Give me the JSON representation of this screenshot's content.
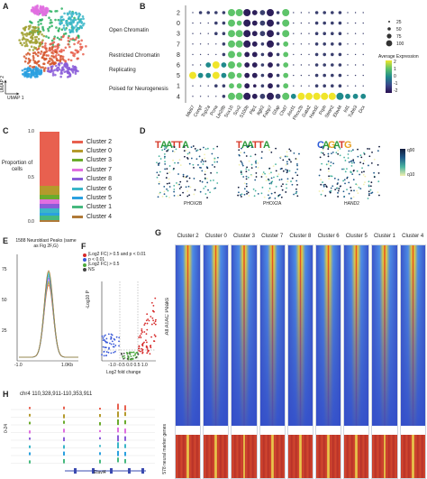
{
  "figure": {
    "panels": {
      "a": "A",
      "b": "B",
      "c": "C",
      "d": "D",
      "e": "E",
      "f": "F",
      "g": "G",
      "h": "H"
    }
  },
  "panel_a": {
    "axis_y": "UMAP 2",
    "axis_x": "UMAP 1"
  },
  "panel_b": {
    "cluster_rows": [
      "2",
      "0",
      "3",
      "7",
      "8",
      "6",
      "5",
      "1",
      "4"
    ],
    "groups": [
      "Open Chromatin",
      "Restricted Chromatin",
      "Replicating",
      "Poised for Neurogenesis"
    ],
    "genes": [
      "Mki67",
      "Cenpf",
      "Top2a",
      "Pcna",
      "Lin28b",
      "Sox10",
      "Sox2",
      "S100b",
      "Plp1",
      "Itgb2",
      "Fabp7",
      "Gfap",
      "Chd7",
      "Ascl1",
      "Phox2b",
      "Gata2",
      "Hand2",
      "Prph",
      "Stmn2",
      "Elavl4",
      "Isl1",
      "Tubb3",
      "Dcx"
    ],
    "size_legend_title": "",
    "size_legend": [
      "25",
      "50",
      "75",
      "100"
    ],
    "color_legend_title": "Average Expression",
    "color_legend": [
      "2",
      "1",
      "0",
      "-1",
      "-2"
    ],
    "dots": [
      [
        1,
        2,
        2,
        2,
        2,
        4,
        4,
        4,
        3,
        3,
        4,
        2,
        4,
        1,
        1,
        1,
        2,
        2,
        2,
        2,
        1,
        1,
        1
      ],
      [
        1,
        1,
        1,
        2,
        2,
        4,
        3,
        4,
        3,
        3,
        4,
        2,
        4,
        1,
        1,
        1,
        2,
        2,
        2,
        2,
        1,
        1,
        1
      ],
      [
        1,
        1,
        1,
        2,
        2,
        4,
        4,
        4,
        3,
        3,
        4,
        2,
        4,
        1,
        1,
        1,
        2,
        2,
        2,
        2,
        1,
        1,
        1
      ],
      [
        1,
        1,
        1,
        1,
        2,
        4,
        4,
        4,
        3,
        2,
        4,
        2,
        3,
        1,
        1,
        1,
        2,
        2,
        2,
        2,
        1,
        1,
        1
      ],
      [
        1,
        1,
        1,
        1,
        2,
        4,
        3,
        3,
        3,
        2,
        3,
        2,
        3,
        1,
        1,
        1,
        2,
        2,
        2,
        2,
        1,
        1,
        1
      ],
      [
        1,
        1,
        3,
        4,
        3,
        4,
        3,
        3,
        3,
        2,
        3,
        2,
        3,
        1,
        1,
        1,
        2,
        2,
        2,
        2,
        1,
        1,
        1
      ],
      [
        4,
        3,
        3,
        4,
        3,
        4,
        3,
        3,
        3,
        2,
        3,
        2,
        3,
        1,
        1,
        1,
        2,
        2,
        2,
        2,
        1,
        1,
        1
      ],
      [
        1,
        1,
        1,
        2,
        2,
        3,
        3,
        3,
        2,
        2,
        3,
        2,
        3,
        1,
        1,
        1,
        2,
        2,
        2,
        2,
        1,
        1,
        1
      ],
      [
        1,
        1,
        1,
        1,
        2,
        4,
        4,
        4,
        3,
        3,
        4,
        3,
        4,
        3,
        4,
        4,
        4,
        4,
        4,
        4,
        3,
        3,
        3
      ]
    ],
    "colors": [
      [
        0,
        0,
        0,
        0,
        0,
        2,
        2,
        1,
        1,
        0,
        1,
        0,
        2,
        0,
        0,
        0,
        0,
        0,
        0,
        0,
        0,
        0,
        0
      ],
      [
        0,
        0,
        0,
        0,
        0,
        2,
        2,
        1,
        1,
        0,
        1,
        0,
        2,
        0,
        0,
        0,
        0,
        0,
        0,
        0,
        0,
        0,
        0
      ],
      [
        0,
        0,
        0,
        0,
        0,
        2,
        2,
        1,
        1,
        0,
        1,
        0,
        2,
        0,
        0,
        0,
        0,
        0,
        0,
        0,
        0,
        0,
        0
      ],
      [
        0,
        0,
        0,
        0,
        0,
        2,
        2,
        1,
        1,
        0,
        1,
        0,
        2,
        0,
        0,
        0,
        0,
        0,
        0,
        0,
        0,
        0,
        0
      ],
      [
        0,
        0,
        0,
        0,
        0,
        2,
        2,
        1,
        1,
        0,
        1,
        0,
        2,
        0,
        0,
        0,
        0,
        0,
        0,
        0,
        0,
        0,
        0
      ],
      [
        0,
        0,
        3,
        4,
        3,
        2,
        2,
        1,
        1,
        0,
        1,
        0,
        2,
        0,
        0,
        0,
        0,
        0,
        0,
        0,
        0,
        0,
        0
      ],
      [
        4,
        3,
        3,
        4,
        3,
        2,
        2,
        1,
        1,
        0,
        1,
        0,
        2,
        0,
        0,
        0,
        0,
        0,
        0,
        0,
        0,
        0,
        0
      ],
      [
        0,
        0,
        0,
        0,
        0,
        2,
        2,
        1,
        1,
        0,
        1,
        0,
        2,
        0,
        0,
        0,
        0,
        0,
        0,
        0,
        0,
        0,
        0
      ],
      [
        0,
        0,
        0,
        0,
        0,
        2,
        2,
        1,
        1,
        0,
        1,
        0,
        2,
        3,
        4,
        4,
        4,
        4,
        4,
        3,
        3,
        3,
        3
      ]
    ]
  },
  "panel_c": {
    "axis_label": "Proportion of cells",
    "ticks": [
      "1.0",
      "0.5",
      "0.0"
    ],
    "legend": [
      {
        "label": "Cluster 2",
        "color": "#e8604f"
      },
      {
        "label": "Cluster 0",
        "color": "#b49a2c"
      },
      {
        "label": "Cluster 3",
        "color": "#6aab2c"
      },
      {
        "label": "Cluster 7",
        "color": "#e06fe0"
      },
      {
        "label": "Cluster 8",
        "color": "#8a5cd8"
      },
      {
        "label": "Cluster 6",
        "color": "#3ab6c8"
      },
      {
        "label": "Cluster 5",
        "color": "#2aa0e0"
      },
      {
        "label": "Cluster 1",
        "color": "#46b97e"
      },
      {
        "label": "Cluster 4",
        "color": "#b07a38"
      }
    ],
    "segments": [
      {
        "color": "#e8604f",
        "value": 0.6
      },
      {
        "color": "#b49a2c",
        "value": 0.1
      },
      {
        "color": "#6aab2c",
        "value": 0.05
      },
      {
        "color": "#e06fe0",
        "value": 0.05
      },
      {
        "color": "#8a5cd8",
        "value": 0.05
      },
      {
        "color": "#3ab6c8",
        "value": 0.05
      },
      {
        "color": "#2aa0e0",
        "value": 0.03
      },
      {
        "color": "#46b97e",
        "value": 0.05
      },
      {
        "color": "#b07a38",
        "value": 0.02
      }
    ]
  },
  "panel_d": {
    "motifs": [
      "PHOX2B",
      "PHOX2A",
      "HAND2"
    ],
    "legend": [
      "q90",
      "q10"
    ]
  },
  "panel_e": {
    "title": "1588 Neuroblast Peaks (same as Fig 2F,G)",
    "ticks": [
      "-1.0",
      "1.0Kb"
    ],
    "yticks": [
      "75",
      "50",
      "25"
    ]
  },
  "panel_f": {
    "legend": [
      {
        "label": "|Log2 FC| > 0.5 and p < 0.01",
        "color": "#d62a2a"
      },
      {
        "label": "p < 0.01",
        "color": "#3a5ad8"
      },
      {
        "label": "|Log2 FC| > 0.5",
        "color": "#4caa3c"
      },
      {
        "label": "NS",
        "color": "#444444"
      }
    ],
    "ylabel": "-Log10 P",
    "xlabel": "Log2 fold change",
    "xticks": [
      "-1.0",
      "-0.5",
      "0.0",
      "0.5",
      "1.0"
    ]
  },
  "panel_g": {
    "columns": [
      "Cluster 2",
      "Cluster 0",
      "Cluster 3",
      "Cluster 7",
      "Cluster 8",
      "Cluster 6",
      "Cluster 5",
      "Cluster 1",
      "Cluster 4"
    ],
    "ylabel_top": "All ATAC Peaks",
    "ylabel_bottom": "578 neural marker genes"
  },
  "panel_h": {
    "title": "chr4 110,328,911-110,353,911",
    "ylabel": "0-24",
    "gene": "Elavl4"
  },
  "chart_data": [
    {
      "type": "scatter",
      "title": "",
      "xlabel": "UMAP 1",
      "ylabel": "UMAP 2"
    },
    {
      "type": "bar",
      "title": "",
      "ylabel": "Proportion of cells",
      "ylim": [
        0,
        1
      ],
      "categories": [
        ""
      ],
      "series": [
        {
          "name": "Cluster 2",
          "values": [
            0.6
          ]
        },
        {
          "name": "Cluster 0",
          "values": [
            0.1
          ]
        },
        {
          "name": "Cluster 3",
          "values": [
            0.05
          ]
        },
        {
          "name": "Cluster 7",
          "values": [
            0.05
          ]
        },
        {
          "name": "Cluster 8",
          "values": [
            0.05
          ]
        },
        {
          "name": "Cluster 6",
          "values": [
            0.05
          ]
        },
        {
          "name": "Cluster 5",
          "values": [
            0.03
          ]
        },
        {
          "name": "Cluster 1",
          "values": [
            0.05
          ]
        },
        {
          "name": "Cluster 4",
          "values": [
            0.02
          ]
        }
      ]
    },
    {
      "type": "line",
      "title": "1588 Neuroblast Peaks (same as Fig 2F,G)",
      "xlabel": "",
      "ylabel": ""
    },
    {
      "type": "scatter",
      "title": "",
      "xlabel": "Log2 fold change",
      "ylabel": "-Log10 P",
      "xlim": [
        -1.0,
        1.0
      ]
    }
  ]
}
